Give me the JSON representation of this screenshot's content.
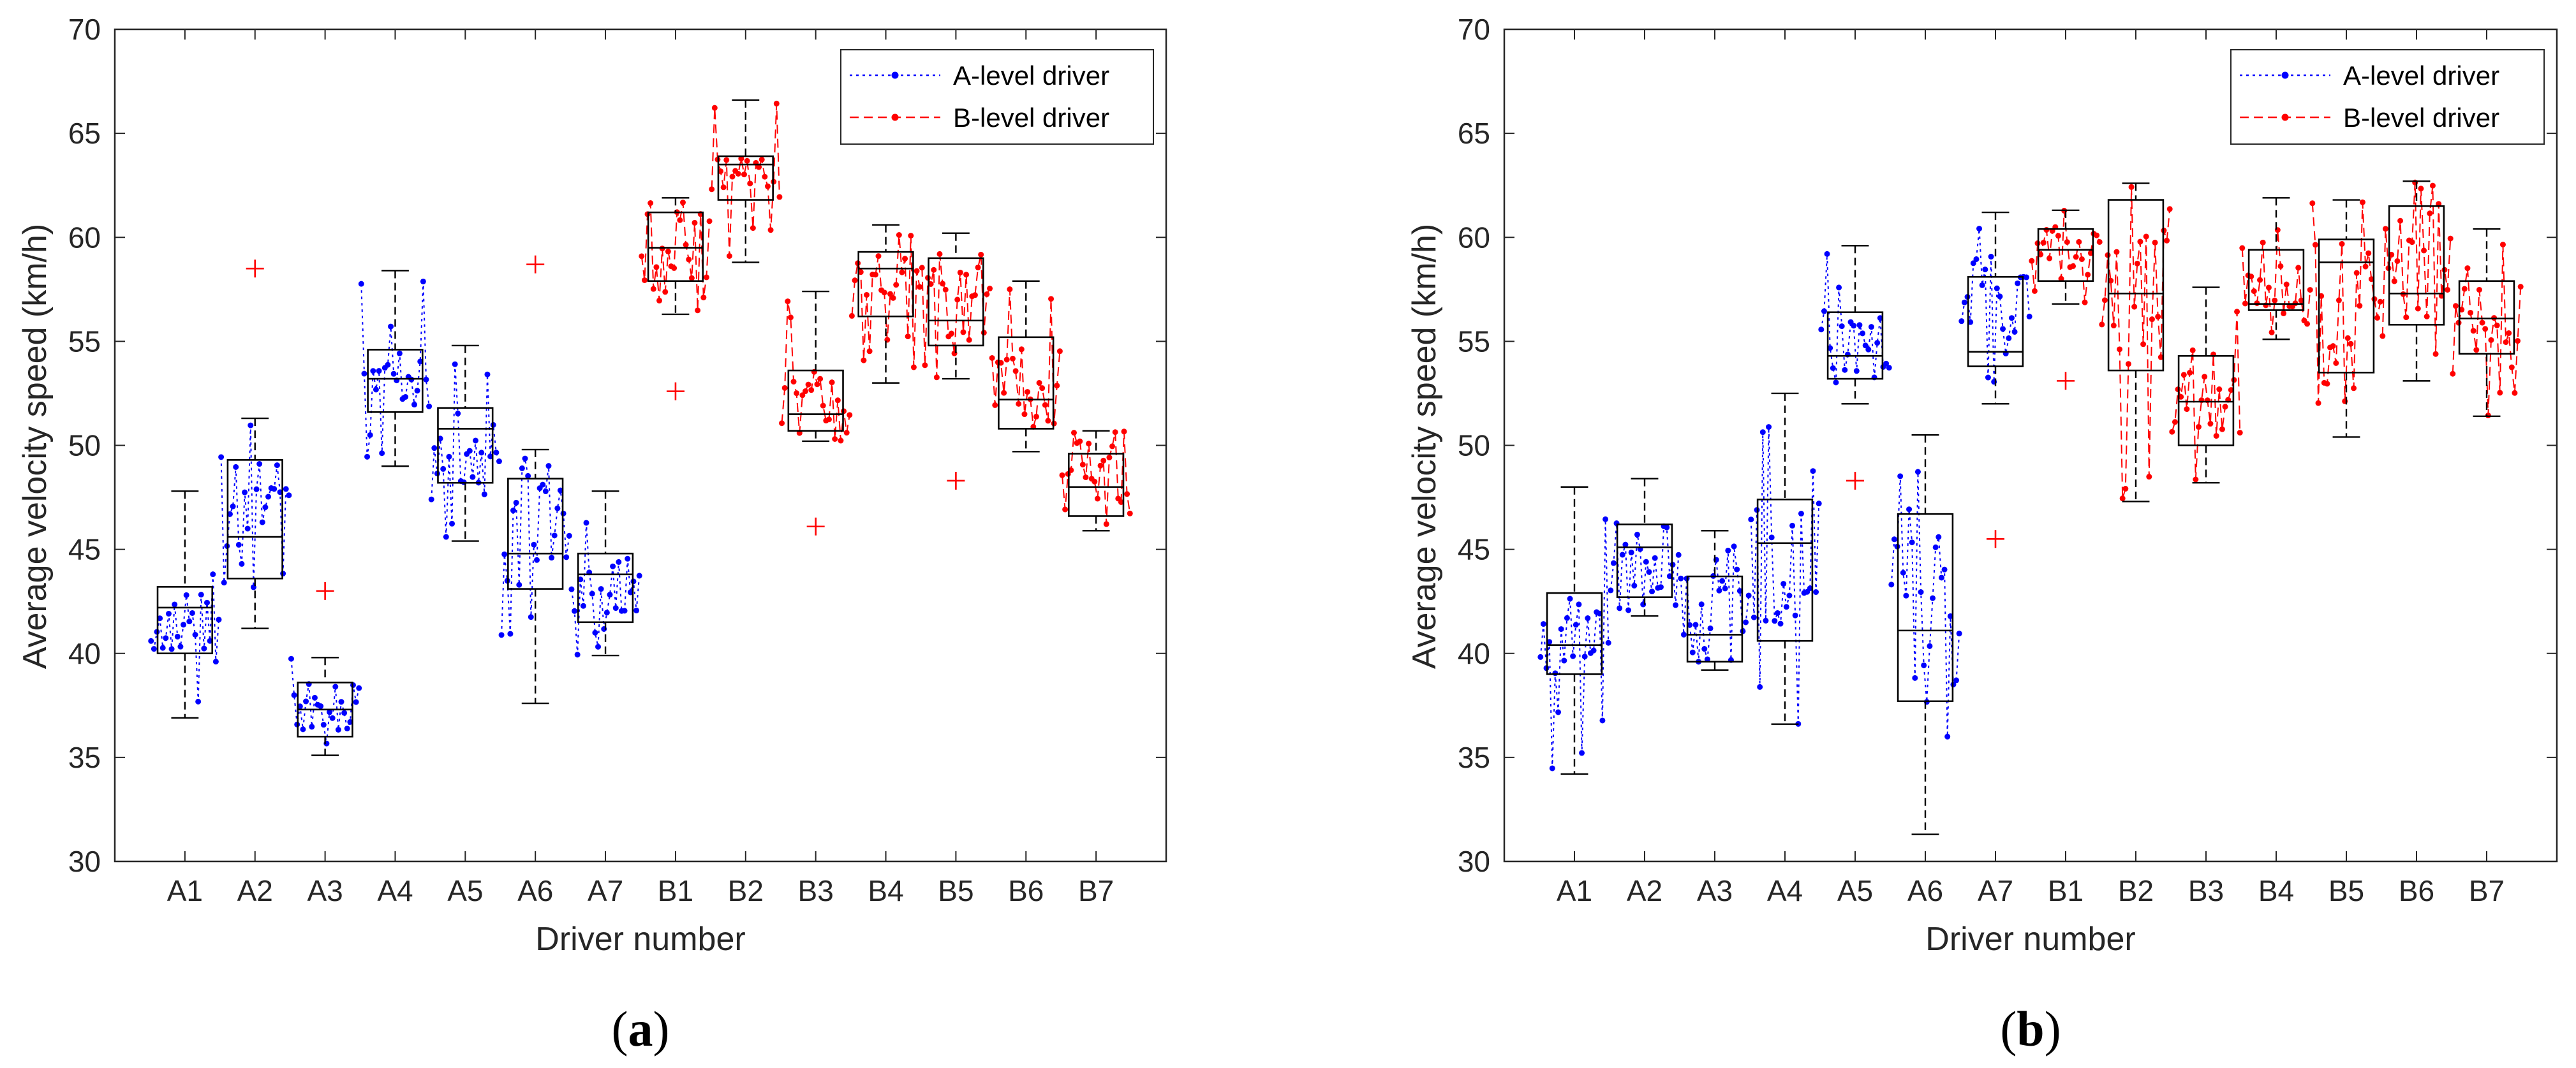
{
  "chart_data": [
    {
      "panel": "a",
      "caption": "a",
      "type": "box",
      "xlabel": "Driver number",
      "ylabel": "Average velocity speed (km/h)",
      "ylim": [
        30,
        70
      ],
      "yticks": [
        30,
        35,
        40,
        45,
        50,
        55,
        60,
        65,
        70
      ],
      "categories": [
        "A1",
        "A2",
        "A3",
        "A4",
        "A5",
        "A6",
        "A7",
        "B1",
        "B2",
        "B3",
        "B4",
        "B5",
        "B6",
        "B7"
      ],
      "legend": [
        {
          "label": "A-level driver",
          "color": "#0000ff",
          "style": "dotted"
        },
        {
          "label": "B-level driver",
          "color": "#ff0000",
          "style": "dashed"
        }
      ],
      "legend_position": "top-right",
      "boxes": [
        {
          "category": "A1",
          "group": "A",
          "min": 36.9,
          "q1": 40.0,
          "median": 42.2,
          "q3": 43.2,
          "max": 47.8,
          "outliers": []
        },
        {
          "category": "A2",
          "group": "A",
          "min": 41.2,
          "q1": 43.6,
          "median": 45.6,
          "q3": 49.3,
          "max": 51.3,
          "outliers": [
            58.5
          ]
        },
        {
          "category": "A3",
          "group": "A",
          "min": 35.1,
          "q1": 36.0,
          "median": 37.3,
          "q3": 38.6,
          "max": 39.8,
          "outliers": [
            43.0
          ]
        },
        {
          "category": "A4",
          "group": "A",
          "min": 49.0,
          "q1": 51.6,
          "median": 53.2,
          "q3": 54.6,
          "max": 58.4,
          "outliers": []
        },
        {
          "category": "A5",
          "group": "A",
          "min": 45.4,
          "q1": 48.2,
          "median": 50.8,
          "q3": 51.8,
          "max": 54.8,
          "outliers": []
        },
        {
          "category": "A6",
          "group": "A",
          "min": 37.6,
          "q1": 43.1,
          "median": 44.8,
          "q3": 48.4,
          "max": 49.8,
          "outliers": [
            58.7
          ]
        },
        {
          "category": "A7",
          "group": "A",
          "min": 39.9,
          "q1": 41.5,
          "median": 43.8,
          "q3": 44.8,
          "max": 47.8,
          "outliers": []
        },
        {
          "category": "B1",
          "group": "B",
          "min": 56.3,
          "q1": 57.9,
          "median": 59.5,
          "q3": 61.2,
          "max": 61.9,
          "outliers": [
            52.6
          ]
        },
        {
          "category": "B2",
          "group": "B",
          "min": 58.8,
          "q1": 61.8,
          "median": 63.5,
          "q3": 63.9,
          "max": 66.6,
          "outliers": []
        },
        {
          "category": "B3",
          "group": "B",
          "min": 50.2,
          "q1": 50.7,
          "median": 51.5,
          "q3": 53.6,
          "max": 57.4,
          "outliers": [
            46.1
          ]
        },
        {
          "category": "B4",
          "group": "B",
          "min": 53.0,
          "q1": 56.2,
          "median": 58.5,
          "q3": 59.3,
          "max": 60.6,
          "outliers": []
        },
        {
          "category": "B5",
          "group": "B",
          "min": 53.2,
          "q1": 54.8,
          "median": 56.0,
          "q3": 59.0,
          "max": 60.2,
          "outliers": [
            48.3
          ]
        },
        {
          "category": "B6",
          "group": "B",
          "min": 49.7,
          "q1": 50.8,
          "median": 52.2,
          "q3": 55.2,
          "max": 57.9,
          "outliers": []
        },
        {
          "category": "B7",
          "group": "B",
          "min": 45.9,
          "q1": 46.6,
          "median": 48.0,
          "q3": 49.6,
          "max": 50.7,
          "outliers": []
        }
      ]
    },
    {
      "panel": "b",
      "caption": "b",
      "type": "box",
      "xlabel": "Driver number",
      "ylabel": "Average velocity speed (km/h)",
      "ylim": [
        30,
        70
      ],
      "yticks": [
        30,
        35,
        40,
        45,
        50,
        55,
        60,
        65,
        70
      ],
      "categories": [
        "A1",
        "A2",
        "A3",
        "A4",
        "A5",
        "A6",
        "A7",
        "B1",
        "B2",
        "B3",
        "B4",
        "B5",
        "B6",
        "B7"
      ],
      "legend": [
        {
          "label": "A-level driver",
          "color": "#0000ff",
          "style": "dotted"
        },
        {
          "label": "B-level driver",
          "color": "#ff0000",
          "style": "dashed"
        }
      ],
      "legend_position": "top-right",
      "boxes": [
        {
          "category": "A1",
          "group": "A",
          "min": 34.2,
          "q1": 39.0,
          "median": 40.4,
          "q3": 42.9,
          "max": 48.0,
          "outliers": []
        },
        {
          "category": "A2",
          "group": "A",
          "min": 41.8,
          "q1": 42.7,
          "median": 45.1,
          "q3": 46.2,
          "max": 48.4,
          "outliers": []
        },
        {
          "category": "A3",
          "group": "A",
          "min": 39.2,
          "q1": 39.6,
          "median": 40.9,
          "q3": 43.7,
          "max": 45.9,
          "outliers": []
        },
        {
          "category": "A4",
          "group": "A",
          "min": 36.6,
          "q1": 40.6,
          "median": 45.3,
          "q3": 47.4,
          "max": 52.5,
          "outliers": []
        },
        {
          "category": "A5",
          "group": "A",
          "min": 52.0,
          "q1": 53.2,
          "median": 54.3,
          "q3": 56.4,
          "max": 59.6,
          "outliers": [
            48.3
          ]
        },
        {
          "category": "A6",
          "group": "A",
          "min": 31.3,
          "q1": 37.7,
          "median": 41.1,
          "q3": 46.7,
          "max": 50.5,
          "outliers": []
        },
        {
          "category": "A7",
          "group": "A",
          "min": 52.0,
          "q1": 53.8,
          "median": 54.5,
          "q3": 58.1,
          "max": 61.2,
          "outliers": [
            45.5
          ]
        },
        {
          "category": "B1",
          "group": "B",
          "min": 56.8,
          "q1": 57.9,
          "median": 59.4,
          "q3": 60.4,
          "max": 61.3,
          "outliers": [
            53.1
          ]
        },
        {
          "category": "B2",
          "group": "B",
          "min": 47.3,
          "q1": 53.6,
          "median": 57.3,
          "q3": 61.8,
          "max": 62.6,
          "outliers": []
        },
        {
          "category": "B3",
          "group": "B",
          "min": 48.2,
          "q1": 50.0,
          "median": 52.1,
          "q3": 54.3,
          "max": 57.6,
          "outliers": []
        },
        {
          "category": "B4",
          "group": "B",
          "min": 55.1,
          "q1": 56.5,
          "median": 56.8,
          "q3": 59.4,
          "max": 61.9,
          "outliers": []
        },
        {
          "category": "B5",
          "group": "B",
          "min": 50.4,
          "q1": 53.5,
          "median": 58.8,
          "q3": 59.9,
          "max": 61.8,
          "outliers": []
        },
        {
          "category": "B6",
          "group": "B",
          "min": 53.1,
          "q1": 55.8,
          "median": 57.3,
          "q3": 61.5,
          "max": 62.7,
          "outliers": []
        },
        {
          "category": "B7",
          "group": "B",
          "min": 51.4,
          "q1": 54.4,
          "median": 56.1,
          "q3": 57.9,
          "max": 60.4,
          "outliers": []
        }
      ]
    }
  ]
}
